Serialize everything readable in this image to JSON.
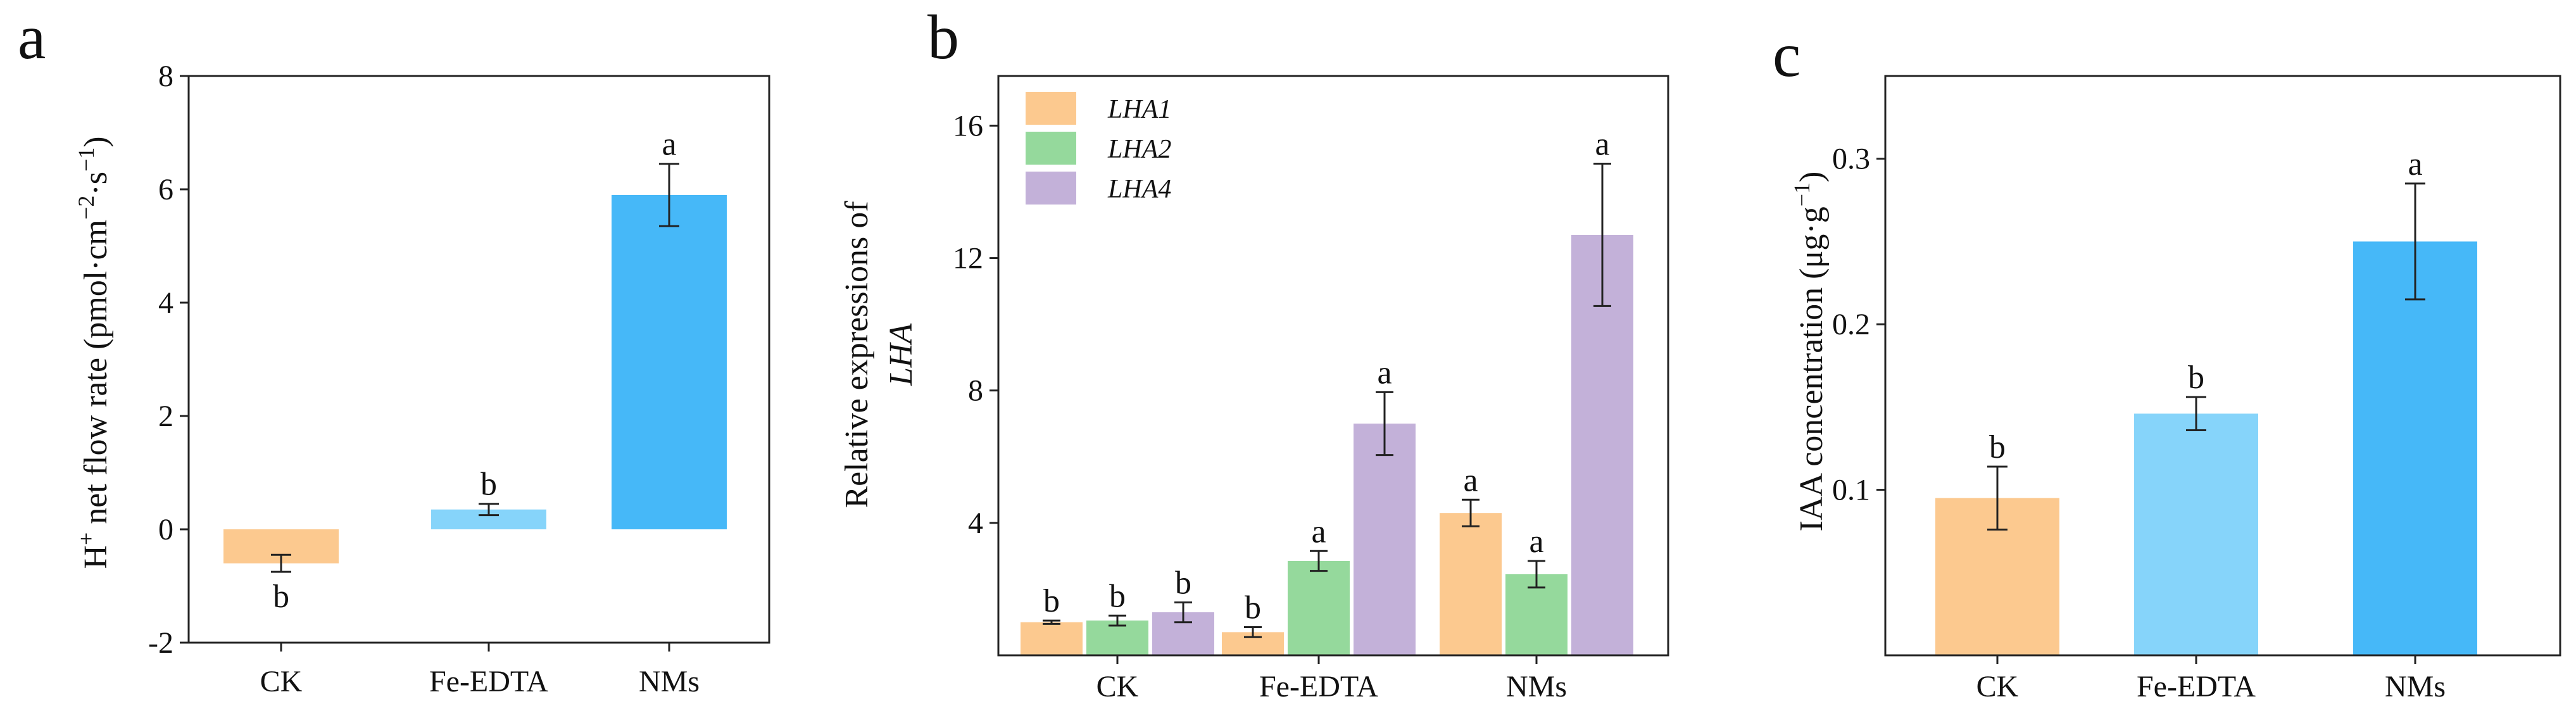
{
  "chart_data": [
    {
      "type": "bar",
      "panel_letter": "a",
      "categories": [
        "CK",
        "Fe-EDTA",
        "NMs"
      ],
      "values": [
        -0.6,
        0.35,
        5.9
      ],
      "errors": [
        0.15,
        0.1,
        0.55
      ],
      "significance": [
        "b",
        "b",
        "a"
      ],
      "colors": [
        "#fcc98f",
        "#86d4fa",
        "#46b8f8"
      ],
      "ylabel": "H+ net flow rate (pmol·cm−2·s−1)",
      "ylabel_parts": {
        "h": "H",
        "h_sup": "+",
        "mid": " net flow rate (pmol·cm",
        "cm_sup": "−2",
        "s": "·s",
        "s_sup": "−1",
        "close": ")"
      },
      "ylim": [
        -2,
        8
      ],
      "yticks": [
        -2,
        0,
        2,
        4,
        6,
        8
      ],
      "ytick_labels": [
        "-2",
        "0",
        "2",
        "4",
        "6",
        "8"
      ]
    },
    {
      "type": "bar",
      "panel_letter": "b",
      "categories": [
        "CK",
        "Fe-EDTA",
        "NMs"
      ],
      "series": [
        {
          "name": "LHA1",
          "color": "#fcc98f",
          "values": [
            1.0,
            0.7,
            4.3
          ],
          "errors": [
            0.05,
            0.15,
            0.4
          ],
          "significance": [
            "b",
            "b",
            "a"
          ]
        },
        {
          "name": "LHA2",
          "color": "#95d99c",
          "values": [
            1.05,
            2.85,
            2.45
          ],
          "errors": [
            0.15,
            0.3,
            0.4
          ],
          "significance": [
            "b",
            "a",
            "a"
          ]
        },
        {
          "name": "LHA4",
          "color": "#c3b1d9",
          "values": [
            1.3,
            7.0,
            12.7
          ],
          "errors": [
            0.3,
            0.95,
            2.15
          ],
          "significance": [
            "b",
            "a",
            "a"
          ]
        }
      ],
      "ylabel_line1": "Relative expressions of",
      "ylabel_line2": "LHA",
      "ylim": [
        0,
        17.5
      ],
      "yticks": [
        4,
        8,
        12,
        16
      ],
      "ytick_labels": [
        "4",
        "8",
        "12",
        "16"
      ],
      "legend_position": "top-left"
    },
    {
      "type": "bar",
      "panel_letter": "c",
      "categories": [
        "CK",
        "Fe-EDTA",
        "NMs"
      ],
      "values": [
        0.095,
        0.146,
        0.25
      ],
      "errors": [
        0.019,
        0.01,
        0.035
      ],
      "significance": [
        "b",
        "b",
        "a"
      ],
      "colors": [
        "#fcc98f",
        "#86d4fa",
        "#46b8f8"
      ],
      "ylabel": "IAA concentration (μg·g−1)",
      "ylabel_parts": {
        "main": "IAA concentration (μg·g",
        "sup": "−1",
        "close": ")"
      },
      "ylim": [
        0,
        0.35
      ],
      "yticks": [
        0.1,
        0.2,
        0.3
      ],
      "ytick_labels": [
        "0.1",
        "0.2",
        "0.3"
      ]
    }
  ]
}
